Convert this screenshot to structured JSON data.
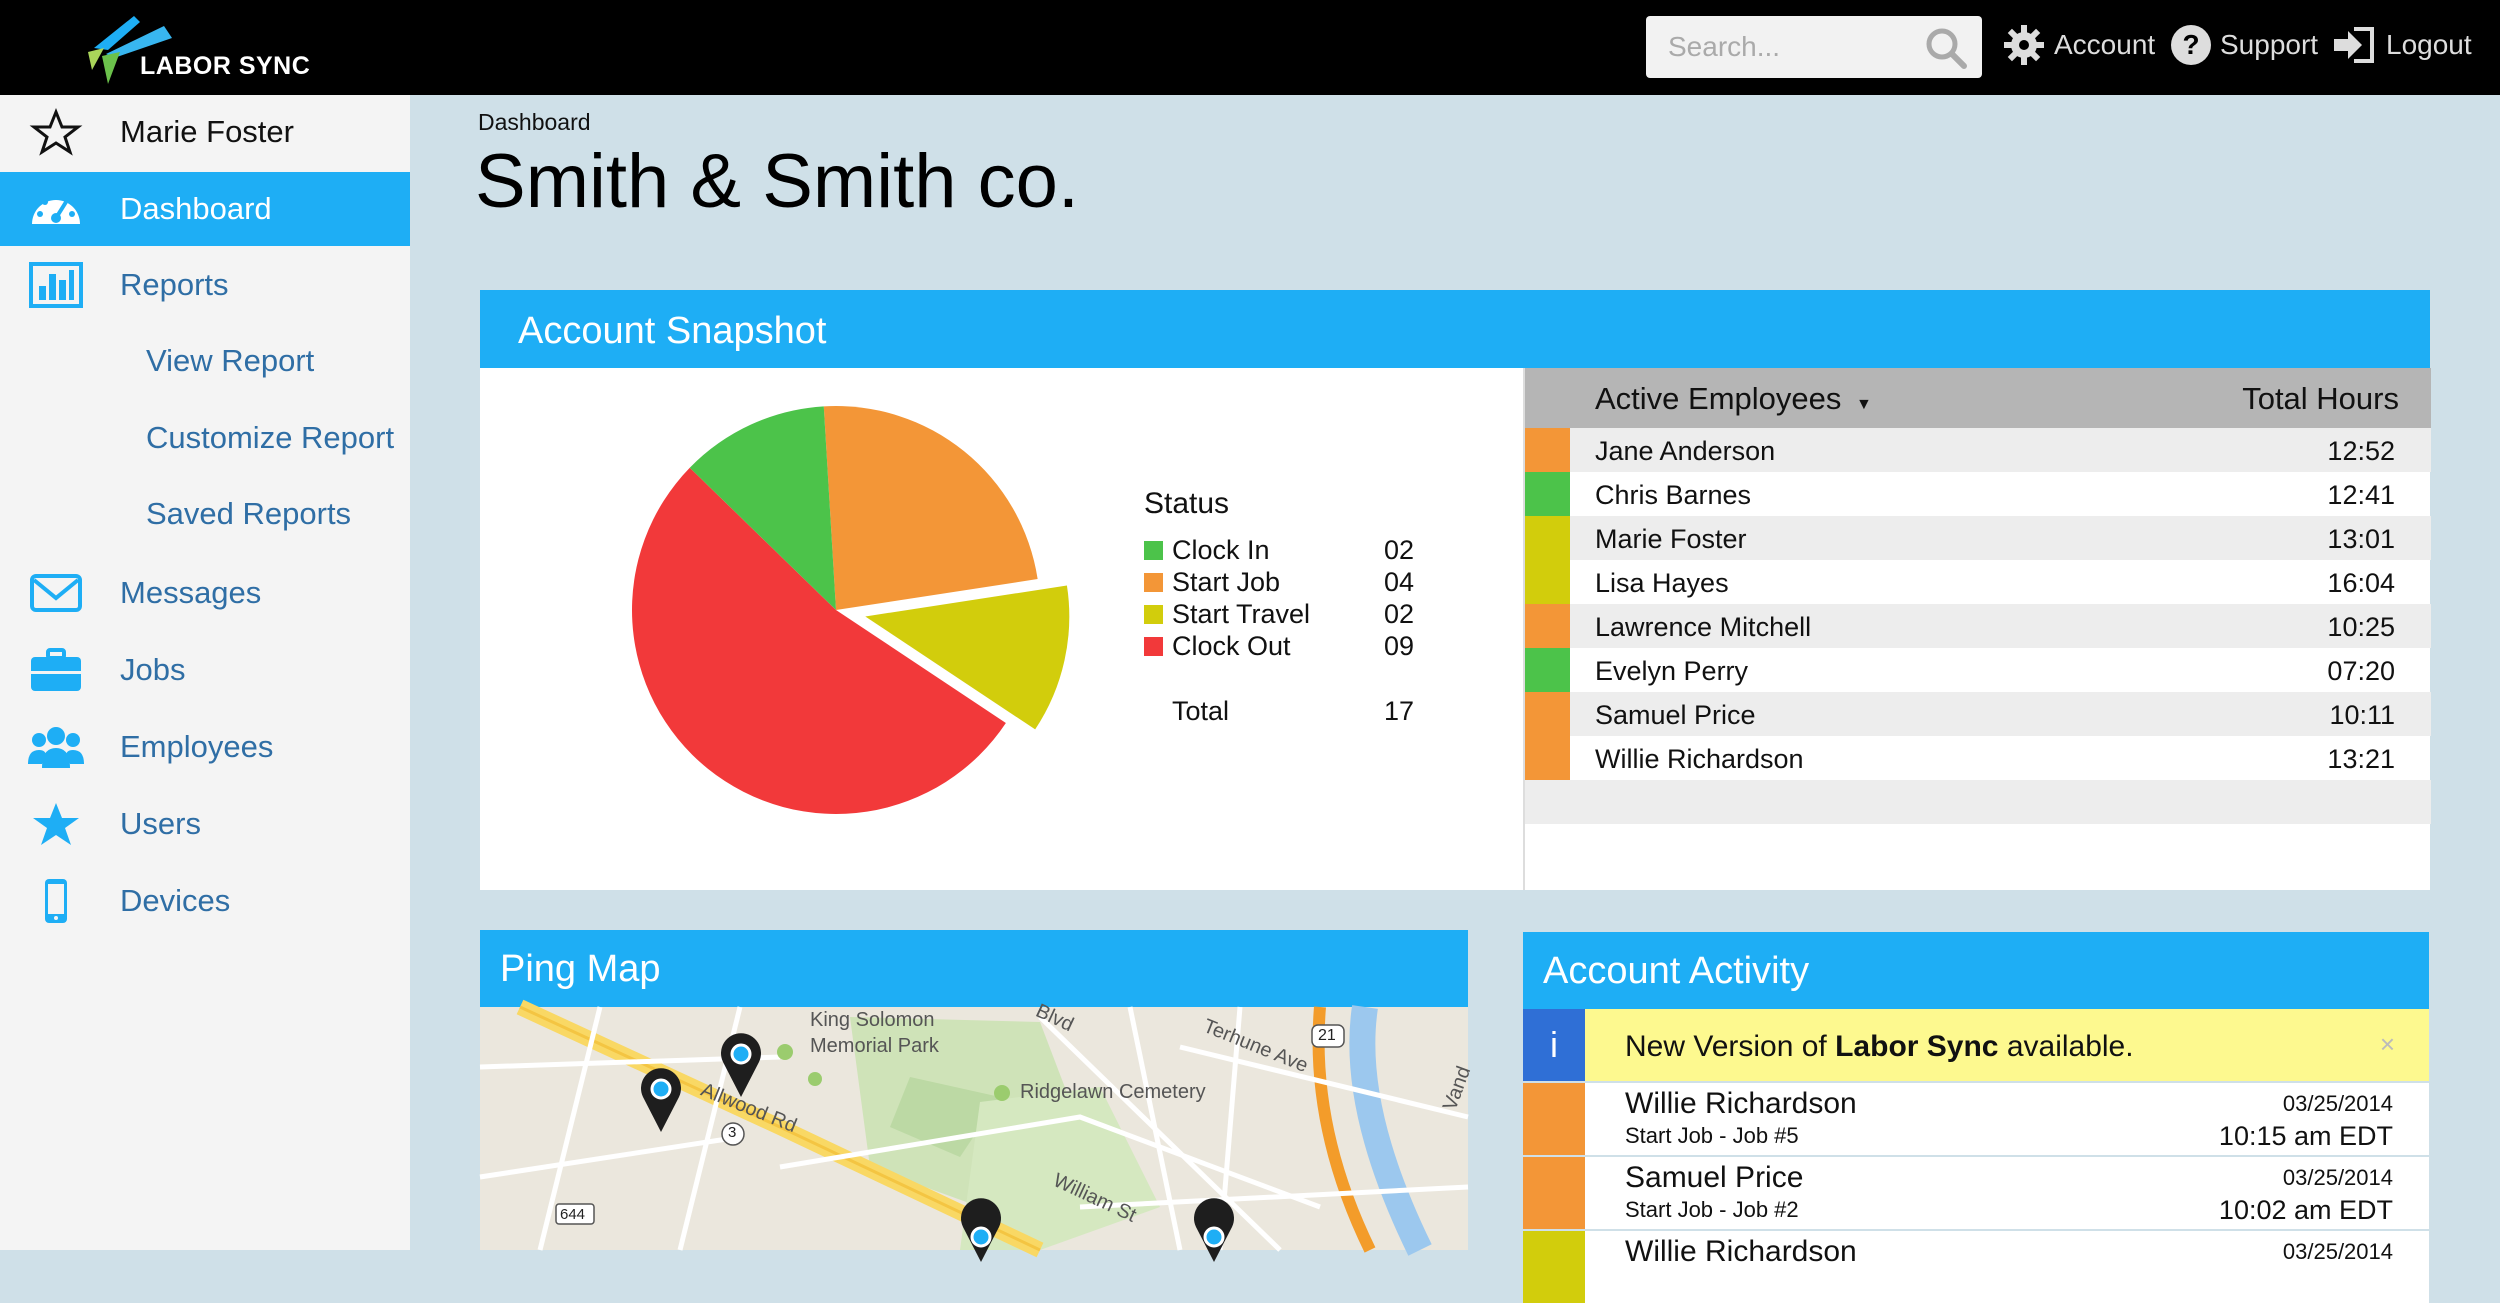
{
  "app": {
    "brand": "LABOR SYNC"
  },
  "header": {
    "search_placeholder": "Search...",
    "account_label": "Account",
    "support_label": "Support",
    "logout_label": "Logout"
  },
  "sidebar": {
    "user_name": "Marie Foster",
    "items": [
      {
        "label": "Dashboard",
        "icon": "dashboard-icon",
        "active": true
      },
      {
        "label": "Reports",
        "icon": "bar-chart-icon"
      },
      {
        "label": "Messages",
        "icon": "envelope-icon"
      },
      {
        "label": "Jobs",
        "icon": "briefcase-icon"
      },
      {
        "label": "Employees",
        "icon": "people-icon"
      },
      {
        "label": "Users",
        "icon": "star-icon"
      },
      {
        "label": "Devices",
        "icon": "phone-icon"
      }
    ],
    "report_subitems": [
      "View Report",
      "Customize Report",
      "Saved Reports"
    ]
  },
  "page": {
    "breadcrumb": "Dashboard",
    "title": "Smith & Smith co."
  },
  "snapshot": {
    "title": "Account Snapshot",
    "legend_title": "Status",
    "statuses": [
      {
        "name": "Clock In",
        "value": "02",
        "color": "#4cc34a"
      },
      {
        "name": "Start Job",
        "value": "04",
        "color": "#f39637"
      },
      {
        "name": "Start Travel",
        "value": "02",
        "color": "#d2cd0c"
      },
      {
        "name": "Clock Out",
        "value": "09",
        "color": "#f2393a"
      }
    ],
    "total_label": "Total",
    "total_value": "17"
  },
  "employees": {
    "col_name": "Active Employees",
    "col_hours": "Total Hours",
    "rows": [
      {
        "name": "Jane Anderson",
        "hours": "12:52",
        "color": "#f39637"
      },
      {
        "name": "Chris Barnes",
        "hours": "12:41",
        "color": "#4cc34a"
      },
      {
        "name": "Marie Foster",
        "hours": "13:01",
        "color": "#d2cd0c"
      },
      {
        "name": "Lisa Hayes",
        "hours": "16:04",
        "color": "#d2cd0c"
      },
      {
        "name": "Lawrence Mitchell",
        "hours": "10:25",
        "color": "#f39637"
      },
      {
        "name": "Evelyn Perry",
        "hours": "07:20",
        "color": "#4cc34a"
      },
      {
        "name": "Samuel Price",
        "hours": "10:11",
        "color": "#f39637"
      },
      {
        "name": "Willie Richardson",
        "hours": "13:21",
        "color": "#f39637"
      }
    ]
  },
  "map": {
    "title": "Ping Map",
    "labels": [
      "King Solomon",
      "Memorial Park",
      "Ridgelawn Cemetery",
      "Terhune Ave",
      "William St",
      "Allwood Rd",
      "Blvd",
      "Vand",
      "21",
      "3",
      "644"
    ]
  },
  "activity": {
    "title": "Account Activity",
    "notice_icon": "i",
    "notice_prefix": "New Version of ",
    "notice_brand": "Labor Sync",
    "notice_suffix": " available.",
    "notice_close": "×",
    "items": [
      {
        "name": "Willie Richardson",
        "detail": "Start Job - Job #5",
        "date": "03/25/2014",
        "time": "10:15 am EDT",
        "color": "#f39637"
      },
      {
        "name": "Samuel Price",
        "detail": "Start Job - Job #2",
        "date": "03/25/2014",
        "time": "10:02 am EDT",
        "color": "#f39637"
      },
      {
        "name": "Willie Richardson",
        "detail": "",
        "date": "03/25/2014",
        "time": "",
        "color": "#d2cd0c"
      }
    ]
  },
  "chart_data": {
    "type": "pie",
    "categories": [
      "Clock In",
      "Start Job",
      "Start Travel",
      "Clock Out"
    ],
    "values": [
      2,
      4,
      2,
      9
    ],
    "legend": "right"
  }
}
